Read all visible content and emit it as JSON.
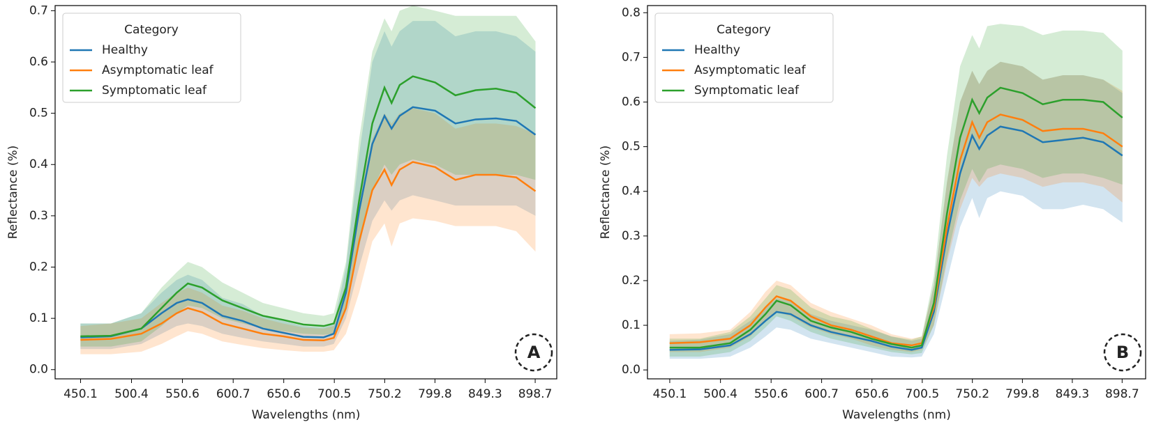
{
  "chart_data": [
    {
      "type": "line",
      "xlabel": "Wavelengths (nm)",
      "ylabel": "Reflectance (%)",
      "legend_title": "Category",
      "annotation": "A",
      "legend": "upper left",
      "grid": false,
      "x": [
        450,
        480,
        510,
        530,
        545,
        556,
        570,
        590,
        610,
        630,
        650,
        670,
        690,
        700,
        712,
        725,
        738,
        750,
        757,
        765,
        778,
        800,
        820,
        840,
        860,
        880,
        899
      ],
      "xlim": [
        425,
        920
      ],
      "ylim": [
        -0.018,
        0.71
      ],
      "xticks": [
        450.1,
        500.4,
        550.6,
        600.7,
        650.6,
        700.5,
        750.2,
        799.8,
        849.3,
        898.7
      ],
      "yticks": [
        {
          "value": 0,
          "label": "0.0"
        },
        0.1,
        0.2,
        0.3,
        0.4,
        0.5,
        0.6,
        0.7
      ],
      "series": [
        {
          "name": "Healthy",
          "color": "#1f77b4",
          "values": [
            0.063,
            0.065,
            0.08,
            0.11,
            0.13,
            0.137,
            0.13,
            0.105,
            0.095,
            0.08,
            0.072,
            0.064,
            0.063,
            0.07,
            0.15,
            0.31,
            0.44,
            0.495,
            0.47,
            0.495,
            0.512,
            0.505,
            0.48,
            0.488,
            0.49,
            0.485,
            0.458
          ],
          "lower": [
            0.04,
            0.04,
            0.05,
            0.07,
            0.085,
            0.09,
            0.085,
            0.07,
            0.062,
            0.055,
            0.05,
            0.045,
            0.045,
            0.05,
            0.1,
            0.2,
            0.29,
            0.33,
            0.31,
            0.33,
            0.34,
            0.33,
            0.32,
            0.32,
            0.32,
            0.32,
            0.3
          ],
          "upper": [
            0.09,
            0.09,
            0.11,
            0.15,
            0.175,
            0.185,
            0.175,
            0.14,
            0.128,
            0.105,
            0.095,
            0.085,
            0.082,
            0.09,
            0.2,
            0.42,
            0.6,
            0.66,
            0.63,
            0.66,
            0.68,
            0.68,
            0.65,
            0.66,
            0.66,
            0.65,
            0.62
          ]
        },
        {
          "name": "Asymptomatic leaf",
          "color": "#ff7f0e",
          "values": [
            0.058,
            0.06,
            0.07,
            0.09,
            0.11,
            0.12,
            0.112,
            0.09,
            0.08,
            0.07,
            0.065,
            0.058,
            0.057,
            0.062,
            0.12,
            0.25,
            0.35,
            0.39,
            0.36,
            0.39,
            0.405,
            0.395,
            0.37,
            0.38,
            0.38,
            0.375,
            0.348
          ],
          "lower": [
            0.03,
            0.03,
            0.035,
            0.05,
            0.065,
            0.075,
            0.07,
            0.055,
            0.048,
            0.042,
            0.038,
            0.035,
            0.035,
            0.038,
            0.07,
            0.15,
            0.25,
            0.285,
            0.24,
            0.285,
            0.295,
            0.29,
            0.28,
            0.28,
            0.28,
            0.27,
            0.23
          ],
          "upper": [
            0.085,
            0.09,
            0.1,
            0.13,
            0.15,
            0.16,
            0.15,
            0.125,
            0.115,
            0.1,
            0.09,
            0.082,
            0.08,
            0.085,
            0.17,
            0.34,
            0.45,
            0.5,
            0.48,
            0.5,
            0.51,
            0.5,
            0.47,
            0.48,
            0.48,
            0.475,
            0.46
          ]
        },
        {
          "name": "Symptomatic leaf",
          "color": "#2ca02c",
          "values": [
            0.065,
            0.066,
            0.08,
            0.12,
            0.15,
            0.168,
            0.16,
            0.135,
            0.12,
            0.105,
            0.097,
            0.088,
            0.085,
            0.09,
            0.16,
            0.33,
            0.48,
            0.55,
            0.52,
            0.555,
            0.572,
            0.56,
            0.535,
            0.545,
            0.548,
            0.54,
            0.51
          ],
          "lower": [
            0.045,
            0.045,
            0.055,
            0.085,
            0.11,
            0.125,
            0.12,
            0.1,
            0.09,
            0.08,
            0.075,
            0.07,
            0.068,
            0.07,
            0.12,
            0.24,
            0.35,
            0.4,
            0.38,
            0.4,
            0.41,
            0.4,
            0.38,
            0.38,
            0.38,
            0.38,
            0.37
          ],
          "upper": [
            0.09,
            0.09,
            0.11,
            0.16,
            0.19,
            0.21,
            0.2,
            0.17,
            0.15,
            0.13,
            0.12,
            0.11,
            0.105,
            0.11,
            0.21,
            0.45,
            0.62,
            0.685,
            0.66,
            0.7,
            0.71,
            0.7,
            0.69,
            0.69,
            0.69,
            0.69,
            0.64
          ]
        }
      ]
    },
    {
      "type": "line",
      "xlabel": "Wavelengths (nm)",
      "ylabel": "Reflectance (%)",
      "legend_title": "Category",
      "annotation": "B",
      "legend": "upper left",
      "grid": false,
      "x": [
        450,
        480,
        510,
        530,
        545,
        556,
        570,
        590,
        610,
        630,
        650,
        670,
        690,
        700,
        712,
        725,
        738,
        750,
        757,
        765,
        778,
        800,
        820,
        840,
        860,
        880,
        899
      ],
      "xlim": [
        428,
        922
      ],
      "ylim": [
        -0.02,
        0.816
      ],
      "xticks": [
        450.1,
        500.4,
        550.6,
        600.7,
        650.6,
        700.5,
        750.2,
        799.8,
        849.3,
        898.7
      ],
      "yticks": [
        {
          "value": 0,
          "label": "0.0"
        },
        0.1,
        0.2,
        0.3,
        0.4,
        0.5,
        0.6,
        0.7,
        0.8
      ],
      "series": [
        {
          "name": "Healthy",
          "color": "#1f77b4",
          "values": [
            0.045,
            0.046,
            0.055,
            0.08,
            0.11,
            0.13,
            0.125,
            0.1,
            0.085,
            0.075,
            0.065,
            0.052,
            0.045,
            0.05,
            0.13,
            0.3,
            0.44,
            0.525,
            0.495,
            0.525,
            0.545,
            0.535,
            0.51,
            0.515,
            0.52,
            0.51,
            0.48
          ],
          "lower": [
            0.025,
            0.025,
            0.03,
            0.05,
            0.075,
            0.095,
            0.09,
            0.07,
            0.06,
            0.05,
            0.04,
            0.03,
            0.028,
            0.03,
            0.08,
            0.2,
            0.32,
            0.385,
            0.34,
            0.385,
            0.4,
            0.39,
            0.36,
            0.36,
            0.37,
            0.36,
            0.33
          ],
          "upper": [
            0.065,
            0.068,
            0.08,
            0.11,
            0.14,
            0.16,
            0.155,
            0.125,
            0.11,
            0.1,
            0.09,
            0.075,
            0.065,
            0.07,
            0.19,
            0.42,
            0.6,
            0.67,
            0.64,
            0.67,
            0.69,
            0.68,
            0.65,
            0.66,
            0.66,
            0.65,
            0.62
          ]
        },
        {
          "name": "Asymptomatic leaf",
          "color": "#ff7f0e",
          "values": [
            0.06,
            0.062,
            0.07,
            0.1,
            0.14,
            0.165,
            0.155,
            0.12,
            0.1,
            0.09,
            0.075,
            0.06,
            0.055,
            0.06,
            0.14,
            0.32,
            0.47,
            0.555,
            0.52,
            0.555,
            0.572,
            0.56,
            0.535,
            0.54,
            0.54,
            0.53,
            0.5
          ],
          "lower": [
            0.04,
            0.04,
            0.05,
            0.075,
            0.11,
            0.13,
            0.12,
            0.095,
            0.08,
            0.07,
            0.055,
            0.045,
            0.04,
            0.045,
            0.1,
            0.24,
            0.36,
            0.43,
            0.41,
            0.43,
            0.44,
            0.43,
            0.41,
            0.42,
            0.42,
            0.41,
            0.375
          ],
          "upper": [
            0.08,
            0.082,
            0.09,
            0.13,
            0.175,
            0.2,
            0.19,
            0.15,
            0.13,
            0.115,
            0.1,
            0.08,
            0.07,
            0.075,
            0.19,
            0.42,
            0.6,
            0.67,
            0.64,
            0.67,
            0.69,
            0.68,
            0.65,
            0.66,
            0.66,
            0.65,
            0.625
          ]
        },
        {
          "name": "Symptomatic leaf",
          "color": "#2ca02c",
          "values": [
            0.05,
            0.05,
            0.06,
            0.09,
            0.125,
            0.155,
            0.145,
            0.11,
            0.095,
            0.085,
            0.07,
            0.058,
            0.05,
            0.055,
            0.15,
            0.35,
            0.52,
            0.605,
            0.575,
            0.61,
            0.632,
            0.62,
            0.595,
            0.605,
            0.605,
            0.6,
            0.565
          ],
          "lower": [
            0.03,
            0.03,
            0.04,
            0.065,
            0.095,
            0.12,
            0.11,
            0.085,
            0.07,
            0.06,
            0.05,
            0.04,
            0.035,
            0.038,
            0.1,
            0.25,
            0.38,
            0.45,
            0.42,
            0.45,
            0.46,
            0.45,
            0.43,
            0.44,
            0.44,
            0.43,
            0.415
          ],
          "upper": [
            0.07,
            0.07,
            0.085,
            0.12,
            0.16,
            0.19,
            0.18,
            0.14,
            0.12,
            0.11,
            0.092,
            0.075,
            0.068,
            0.075,
            0.21,
            0.48,
            0.68,
            0.75,
            0.72,
            0.77,
            0.775,
            0.77,
            0.75,
            0.76,
            0.76,
            0.755,
            0.715
          ]
        }
      ]
    }
  ]
}
